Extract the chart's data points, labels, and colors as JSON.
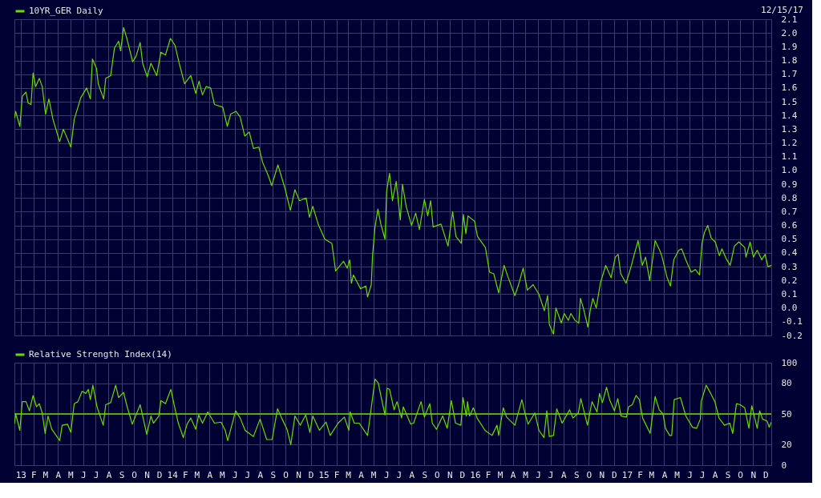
{
  "chart_data": [
    {
      "type": "line",
      "annotations": [
        "12/15/17"
      ],
      "xlim": [
        "2012-12-17",
        "2017-12-15"
      ],
      "ylim": [
        -0.2,
        2.1
      ],
      "yticks": [
        -0.2,
        -0.1,
        {
          "value": 0,
          "label": "0.0"
        },
        0.1,
        0.2,
        0.3,
        0.4,
        0.5,
        0.6,
        0.7,
        0.8,
        0.9,
        {
          "value": 1,
          "label": "1.0"
        },
        1.1,
        1.2,
        1.3,
        1.4,
        1.5,
        1.6,
        1.7,
        1.8,
        1.9,
        {
          "value": 2,
          "label": "2.0"
        },
        2.1
      ],
      "xticks": [
        {
          "value": "2013-01-01",
          "label": null
        },
        {
          "value": "2013-02-01",
          "label": null
        },
        {
          "value": "2013-03-01",
          "label": null
        },
        {
          "value": "2013-04-01",
          "label": null
        },
        {
          "value": "2013-05-01",
          "label": null
        },
        {
          "value": "2013-06-01",
          "label": null
        },
        {
          "value": "2013-07-01",
          "label": null
        },
        {
          "value": "2013-08-01",
          "label": null
        },
        {
          "value": "2013-09-01",
          "label": null
        },
        {
          "value": "2013-10-01",
          "label": null
        },
        {
          "value": "2013-11-01",
          "label": null
        },
        {
          "value": "2013-12-01",
          "label": null
        },
        {
          "value": "2014-01-01",
          "label": null
        },
        {
          "value": "2014-02-01",
          "label": null
        },
        {
          "value": "2014-03-01",
          "label": null
        },
        {
          "value": "2014-04-01",
          "label": null
        },
        {
          "value": "2014-05-01",
          "label": null
        },
        {
          "value": "2014-06-01",
          "label": null
        },
        {
          "value": "2014-07-01",
          "label": null
        },
        {
          "value": "2014-08-01",
          "label": null
        },
        {
          "value": "2014-09-01",
          "label": null
        },
        {
          "value": "2014-10-01",
          "label": null
        },
        {
          "value": "2014-11-01",
          "label": null
        },
        {
          "value": "2014-12-01",
          "label": null
        },
        {
          "value": "2015-01-01",
          "label": null
        },
        {
          "value": "2015-02-01",
          "label": null
        },
        {
          "value": "2015-03-01",
          "label": null
        },
        {
          "value": "2015-04-01",
          "label": null
        },
        {
          "value": "2015-05-01",
          "label": null
        },
        {
          "value": "2015-06-01",
          "label": null
        },
        {
          "value": "2015-07-01",
          "label": null
        },
        {
          "value": "2015-08-01",
          "label": null
        },
        {
          "value": "2015-09-01",
          "label": null
        },
        {
          "value": "2015-10-01",
          "label": null
        },
        {
          "value": "2015-11-01",
          "label": null
        },
        {
          "value": "2015-12-01",
          "label": null
        },
        {
          "value": "2016-01-01",
          "label": null
        },
        {
          "value": "2016-02-01",
          "label": null
        },
        {
          "value": "2016-03-01",
          "label": null
        },
        {
          "value": "2016-04-01",
          "label": null
        },
        {
          "value": "2016-05-01",
          "label": null
        },
        {
          "value": "2016-06-01",
          "label": null
        },
        {
          "value": "2016-07-01",
          "label": null
        },
        {
          "value": "2016-08-01",
          "label": null
        },
        {
          "value": "2016-09-01",
          "label": null
        },
        {
          "value": "2016-10-01",
          "label": null
        },
        {
          "value": "2016-11-01",
          "label": null
        },
        {
          "value": "2016-12-01",
          "label": null
        },
        {
          "value": "2017-01-01",
          "label": null
        },
        {
          "value": "2017-02-01",
          "label": null
        },
        {
          "value": "2017-03-01",
          "label": null
        },
        {
          "value": "2017-04-01",
          "label": null
        },
        {
          "value": "2017-05-01",
          "label": null
        },
        {
          "value": "2017-06-01",
          "label": null
        },
        {
          "value": "2017-07-01",
          "label": null
        },
        {
          "value": "2017-08-01",
          "label": null
        },
        {
          "value": "2017-09-01",
          "label": null
        },
        {
          "value": "2017-10-01",
          "label": null
        },
        {
          "value": "2017-11-01",
          "label": null
        },
        {
          "value": "2017-12-01",
          "label": null
        }
      ],
      "tick_labels": "y",
      "grid": true,
      "legend": "top left",
      "x": [
        "2012-12-17",
        "2012-12-20",
        "2012-12-30",
        "2013-01-05",
        "2013-01-14",
        "2013-01-19",
        "2013-01-26",
        "2013-01-31",
        "2013-02-06",
        "2013-02-15",
        "2013-02-22",
        "2013-03-02",
        "2013-03-10",
        "2013-03-20",
        "2013-04-05",
        "2013-04-14",
        "2013-05-02",
        "2013-05-10",
        "2013-05-26",
        "2013-06-09",
        "2013-06-18",
        "2013-06-23",
        "2013-07-03",
        "2013-07-07",
        "2013-07-20",
        "2013-07-25",
        "2013-08-06",
        "2013-08-15",
        "2013-08-25",
        "2013-08-30",
        "2013-09-06",
        "2013-09-14",
        "2013-09-28",
        "2013-10-06",
        "2013-10-16",
        "2013-10-22",
        "2013-11-02",
        "2013-11-11",
        "2013-11-25",
        "2013-12-05",
        "2013-12-16",
        "2013-12-28",
        "2014-01-08",
        "2014-01-18",
        "2014-01-31",
        "2014-02-15",
        "2014-02-27",
        "2014-03-07",
        "2014-03-15",
        "2014-03-24",
        "2014-04-04",
        "2014-04-13",
        "2014-05-03",
        "2014-05-14",
        "2014-05-22",
        "2014-06-04",
        "2014-06-14",
        "2014-06-25",
        "2014-07-06",
        "2014-07-16",
        "2014-07-29",
        "2014-08-07",
        "2014-08-21",
        "2014-08-29",
        "2014-09-13",
        "2014-09-30",
        "2014-10-13",
        "2014-10-24",
        "2014-11-04",
        "2014-11-20",
        "2014-11-28",
        "2014-12-06",
        "2014-12-19",
        "2015-01-04",
        "2015-01-21",
        "2015-01-30",
        "2015-02-18",
        "2015-02-27",
        "2015-03-05",
        "2015-03-09",
        "2015-03-14",
        "2015-03-31",
        "2015-04-13",
        "2015-04-17",
        "2015-04-26",
        "2015-04-29",
        "2015-05-05",
        "2015-05-12",
        "2015-05-19",
        "2015-05-29",
        "2015-06-02",
        "2015-06-09",
        "2015-06-16",
        "2015-06-25",
        "2015-07-05",
        "2015-07-10",
        "2015-07-19",
        "2015-08-01",
        "2015-08-11",
        "2015-08-20",
        "2015-09-01",
        "2015-09-09",
        "2015-09-16",
        "2015-09-22",
        "2015-10-11",
        "2015-10-28",
        "2015-11-08",
        "2015-11-16",
        "2015-11-29",
        "2015-12-04",
        "2015-12-10",
        "2015-12-15",
        "2015-12-31",
        "2016-01-07",
        "2016-01-26",
        "2016-02-05",
        "2016-02-15",
        "2016-02-27",
        "2016-03-11",
        "2016-03-20",
        "2016-04-06",
        "2016-04-15",
        "2016-04-26",
        "2016-05-06",
        "2016-05-20",
        "2016-06-03",
        "2016-06-16",
        "2016-06-24",
        "2016-06-28",
        "2016-07-08",
        "2016-07-14",
        "2016-07-27",
        "2016-08-03",
        "2016-08-13",
        "2016-08-19",
        "2016-08-29",
        "2016-09-07",
        "2016-09-11",
        "2016-09-18",
        "2016-09-29",
        "2016-10-05",
        "2016-10-11",
        "2016-10-19",
        "2016-10-29",
        "2016-11-11",
        "2016-11-24",
        "2016-12-04",
        "2016-12-11",
        "2016-12-17",
        "2016-12-30",
        "2017-01-12",
        "2017-01-18",
        "2017-01-28",
        "2017-02-07",
        "2017-02-15",
        "2017-02-25",
        "2017-03-10",
        "2017-03-21",
        "2017-03-26",
        "2017-04-08",
        "2017-04-16",
        "2017-04-24",
        "2017-05-06",
        "2017-05-13",
        "2017-05-23",
        "2017-06-05",
        "2017-06-15",
        "2017-06-25",
        "2017-07-01",
        "2017-07-07",
        "2017-07-15",
        "2017-07-23",
        "2017-08-02",
        "2017-08-12",
        "2017-08-18",
        "2017-08-28",
        "2017-09-07",
        "2017-09-17",
        "2017-09-28",
        "2017-10-12",
        "2017-10-15",
        "2017-10-25",
        "2017-11-02",
        "2017-11-11",
        "2017-11-22",
        "2017-11-30",
        "2017-12-07",
        "2017-12-15"
      ],
      "series": [
        {
          "name": "10YR_GER Daily",
          "color": "#66dd00",
          "values": [
            1.38,
            1.43,
            1.32,
            1.54,
            1.57,
            1.49,
            1.48,
            1.71,
            1.61,
            1.67,
            1.61,
            1.41,
            1.52,
            1.37,
            1.21,
            1.3,
            1.17,
            1.37,
            1.53,
            1.6,
            1.52,
            1.81,
            1.74,
            1.63,
            1.52,
            1.67,
            1.69,
            1.89,
            1.94,
            1.87,
            2.04,
            1.96,
            1.79,
            1.83,
            1.93,
            1.78,
            1.68,
            1.78,
            1.69,
            1.86,
            1.84,
            1.96,
            1.91,
            1.78,
            1.63,
            1.69,
            1.56,
            1.65,
            1.55,
            1.61,
            1.6,
            1.48,
            1.46,
            1.32,
            1.41,
            1.43,
            1.39,
            1.25,
            1.28,
            1.16,
            1.17,
            1.06,
            0.96,
            0.89,
            1.04,
            0.87,
            0.71,
            0.86,
            0.78,
            0.8,
            0.66,
            0.74,
            0.61,
            0.5,
            0.47,
            0.27,
            0.34,
            0.29,
            0.35,
            0.18,
            0.24,
            0.14,
            0.16,
            0.08,
            0.17,
            0.38,
            0.59,
            0.72,
            0.61,
            0.5,
            0.85,
            0.98,
            0.78,
            0.92,
            0.64,
            0.9,
            0.74,
            0.6,
            0.69,
            0.57,
            0.79,
            0.67,
            0.78,
            0.59,
            0.61,
            0.45,
            0.7,
            0.52,
            0.47,
            0.68,
            0.54,
            0.67,
            0.63,
            0.52,
            0.44,
            0.26,
            0.25,
            0.11,
            0.31,
            0.23,
            0.09,
            0.17,
            0.29,
            0.13,
            0.17,
            0.1,
            -0.02,
            0.09,
            -0.12,
            -0.19,
            0.0,
            -0.11,
            -0.04,
            -0.09,
            -0.04,
            -0.09,
            -0.11,
            0.07,
            0.0,
            -0.14,
            -0.01,
            0.07,
            0.0,
            0.18,
            0.31,
            0.22,
            0.37,
            0.39,
            0.25,
            0.18,
            0.31,
            0.38,
            0.49,
            0.31,
            0.37,
            0.2,
            0.49,
            0.42,
            0.38,
            0.22,
            0.16,
            0.35,
            0.42,
            0.43,
            0.35,
            0.26,
            0.28,
            0.24,
            0.47,
            0.55,
            0.6,
            0.51,
            0.48,
            0.38,
            0.43,
            0.36,
            0.31,
            0.45,
            0.48,
            0.44,
            0.37,
            0.48,
            0.37,
            0.42,
            0.35,
            0.39,
            0.3,
            0.31
          ]
        }
      ]
    },
    {
      "type": "line",
      "xlim": [
        "2012-12-17",
        "2017-12-15"
      ],
      "ylim": [
        0,
        100
      ],
      "yticks": [
        0,
        20,
        50,
        80,
        100
      ],
      "xticks": [
        {
          "value": "2013-01-01",
          "label": "13"
        },
        {
          "value": "2013-02-01",
          "label": "F"
        },
        {
          "value": "2013-03-01",
          "label": "M"
        },
        {
          "value": "2013-04-01",
          "label": "A"
        },
        {
          "value": "2013-05-01",
          "label": "M"
        },
        {
          "value": "2013-06-01",
          "label": "J"
        },
        {
          "value": "2013-07-01",
          "label": "J"
        },
        {
          "value": "2013-08-01",
          "label": "A"
        },
        {
          "value": "2013-09-01",
          "label": "S"
        },
        {
          "value": "2013-10-01",
          "label": "O"
        },
        {
          "value": "2013-11-01",
          "label": "N"
        },
        {
          "value": "2013-12-01",
          "label": "D"
        },
        {
          "value": "2014-01-01",
          "label": "14"
        },
        {
          "value": "2014-02-01",
          "label": "F"
        },
        {
          "value": "2014-03-01",
          "label": "M"
        },
        {
          "value": "2014-04-01",
          "label": "A"
        },
        {
          "value": "2014-05-01",
          "label": "M"
        },
        {
          "value": "2014-06-01",
          "label": "J"
        },
        {
          "value": "2014-07-01",
          "label": "J"
        },
        {
          "value": "2014-08-01",
          "label": "A"
        },
        {
          "value": "2014-09-01",
          "label": "S"
        },
        {
          "value": "2014-10-01",
          "label": "O"
        },
        {
          "value": "2014-11-01",
          "label": "N"
        },
        {
          "value": "2014-12-01",
          "label": "D"
        },
        {
          "value": "2015-01-01",
          "label": "15"
        },
        {
          "value": "2015-02-01",
          "label": "F"
        },
        {
          "value": "2015-03-01",
          "label": "M"
        },
        {
          "value": "2015-04-01",
          "label": "A"
        },
        {
          "value": "2015-05-01",
          "label": "M"
        },
        {
          "value": "2015-06-01",
          "label": "J"
        },
        {
          "value": "2015-07-01",
          "label": "J"
        },
        {
          "value": "2015-08-01",
          "label": "A"
        },
        {
          "value": "2015-09-01",
          "label": "S"
        },
        {
          "value": "2015-10-01",
          "label": "O"
        },
        {
          "value": "2015-11-01",
          "label": "N"
        },
        {
          "value": "2015-12-01",
          "label": "D"
        },
        {
          "value": "2016-01-01",
          "label": "16"
        },
        {
          "value": "2016-02-01",
          "label": "F"
        },
        {
          "value": "2016-03-01",
          "label": "M"
        },
        {
          "value": "2016-04-01",
          "label": "A"
        },
        {
          "value": "2016-05-01",
          "label": "M"
        },
        {
          "value": "2016-06-01",
          "label": "J"
        },
        {
          "value": "2016-07-01",
          "label": "J"
        },
        {
          "value": "2016-08-01",
          "label": "A"
        },
        {
          "value": "2016-09-01",
          "label": "S"
        },
        {
          "value": "2016-10-01",
          "label": "O"
        },
        {
          "value": "2016-11-01",
          "label": "N"
        },
        {
          "value": "2016-12-01",
          "label": "D"
        },
        {
          "value": "2017-01-01",
          "label": "17"
        },
        {
          "value": "2017-02-01",
          "label": "F"
        },
        {
          "value": "2017-03-01",
          "label": "M"
        },
        {
          "value": "2017-04-01",
          "label": "A"
        },
        {
          "value": "2017-05-01",
          "label": "M"
        },
        {
          "value": "2017-06-01",
          "label": "J"
        },
        {
          "value": "2017-07-01",
          "label": "J"
        },
        {
          "value": "2017-08-01",
          "label": "A"
        },
        {
          "value": "2017-09-01",
          "label": "S"
        },
        {
          "value": "2017-10-01",
          "label": "O"
        },
        {
          "value": "2017-11-01",
          "label": "N"
        },
        {
          "value": "2017-12-01",
          "label": "D"
        }
      ],
      "grid": true,
      "legend": "top left",
      "ref_lines": [
        {
          "axis": "y",
          "value": 50,
          "color": "#66dd00"
        }
      ],
      "x": [
        "2012-12-17",
        "2012-12-20",
        "2012-12-30",
        "2013-01-05",
        "2013-01-14",
        "2013-01-22",
        "2013-01-31",
        "2013-02-08",
        "2013-02-15",
        "2013-02-22",
        "2013-03-01",
        "2013-03-08",
        "2013-03-17",
        "2013-04-05",
        "2013-04-11",
        "2013-04-24",
        "2013-05-02",
        "2013-05-10",
        "2013-05-19",
        "2013-05-29",
        "2013-06-07",
        "2013-06-13",
        "2013-06-18",
        "2013-06-24",
        "2013-07-04",
        "2013-07-19",
        "2013-07-25",
        "2013-08-06",
        "2013-08-18",
        "2013-08-25",
        "2013-09-06",
        "2013-09-14",
        "2013-09-27",
        "2013-10-16",
        "2013-11-01",
        "2013-11-11",
        "2013-11-17",
        "2013-11-30",
        "2013-12-05",
        "2013-12-16",
        "2013-12-29",
        "2014-01-08",
        "2014-01-16",
        "2014-01-28",
        "2014-02-06",
        "2014-02-15",
        "2014-02-27",
        "2014-03-06",
        "2014-03-15",
        "2014-03-28",
        "2014-04-13",
        "2014-04-29",
        "2014-05-09",
        "2014-05-15",
        "2014-06-03",
        "2014-06-14",
        "2014-06-26",
        "2014-07-16",
        "2014-08-01",
        "2014-08-17",
        "2014-08-30",
        "2014-09-12",
        "2014-09-22",
        "2014-10-05",
        "2014-10-14",
        "2014-10-24",
        "2014-11-06",
        "2014-11-19",
        "2014-11-29",
        "2014-12-06",
        "2014-12-22",
        "2015-01-07",
        "2015-01-17",
        "2015-02-05",
        "2015-02-20",
        "2015-03-03",
        "2015-03-06",
        "2015-03-16",
        "2015-03-28",
        "2015-04-17",
        "2015-04-24",
        "2015-05-05",
        "2015-05-13",
        "2015-05-19",
        "2015-05-29",
        "2015-06-03",
        "2015-06-09",
        "2015-06-20",
        "2015-06-27",
        "2015-07-08",
        "2015-07-12",
        "2015-07-30",
        "2015-08-06",
        "2015-08-24",
        "2015-09-01",
        "2015-09-14",
        "2015-09-20",
        "2015-09-30",
        "2015-10-15",
        "2015-10-26",
        "2015-11-05",
        "2015-11-15",
        "2015-11-28",
        "2015-12-03",
        "2015-12-11",
        "2015-12-14",
        "2015-12-19",
        "2015-12-28",
        "2016-01-06",
        "2016-01-25",
        "2016-02-11",
        "2016-02-23",
        "2016-02-27",
        "2016-03-09",
        "2016-03-17",
        "2016-04-06",
        "2016-04-12",
        "2016-04-23",
        "2016-04-30",
        "2016-05-08",
        "2016-05-24",
        "2016-06-03",
        "2016-06-15",
        "2016-06-22",
        "2016-06-28",
        "2016-07-08",
        "2016-07-16",
        "2016-07-29",
        "2016-08-16",
        "2016-08-24",
        "2016-09-06",
        "2016-09-12",
        "2016-09-28",
        "2016-10-09",
        "2016-10-21",
        "2016-10-27",
        "2016-11-03",
        "2016-11-13",
        "2016-11-21",
        "2016-12-02",
        "2016-12-10",
        "2016-12-18",
        "2016-12-31",
        "2017-01-05",
        "2017-01-14",
        "2017-01-23",
        "2017-01-31",
        "2017-02-08",
        "2017-02-26",
        "2017-03-10",
        "2017-03-20",
        "2017-03-29",
        "2017-04-04",
        "2017-04-14",
        "2017-04-19",
        "2017-04-25",
        "2017-05-10",
        "2017-05-23",
        "2017-06-08",
        "2017-06-18",
        "2017-06-27",
        "2017-06-29",
        "2017-07-11",
        "2017-07-22",
        "2017-08-01",
        "2017-08-11",
        "2017-08-24",
        "2017-09-06",
        "2017-09-13",
        "2017-09-22",
        "2017-10-01",
        "2017-10-12",
        "2017-10-22",
        "2017-10-29",
        "2017-11-11",
        "2017-11-17",
        "2017-11-24",
        "2017-12-05",
        "2017-12-10",
        "2017-12-15"
      ],
      "series": [
        {
          "name": "Relative Strength Index(14)",
          "color": "#66dd00",
          "values": [
            40,
            50,
            34,
            62,
            62,
            53,
            68,
            57,
            60,
            51,
            31,
            48,
            35,
            24,
            39,
            40,
            32,
            60,
            62,
            72,
            70,
            74,
            64,
            78,
            57,
            39,
            59,
            61,
            78,
            66,
            71,
            58,
            40,
            59,
            30,
            48,
            41,
            48,
            63,
            60,
            74,
            55,
            41,
            27,
            40,
            46,
            35,
            49,
            41,
            52,
            41,
            42,
            34,
            24,
            53,
            46,
            34,
            28,
            45,
            25,
            25,
            55,
            46,
            35,
            20,
            48,
            39,
            49,
            32,
            48,
            34,
            42,
            29,
            41,
            47,
            34,
            52,
            41,
            41,
            29,
            50,
            84,
            80,
            68,
            49,
            75,
            74,
            54,
            62,
            46,
            57,
            40,
            41,
            62,
            47,
            60,
            41,
            35,
            48,
            36,
            63,
            41,
            39,
            66,
            48,
            62,
            48,
            56,
            46,
            34,
            29,
            39,
            29,
            56,
            47,
            39,
            48,
            64,
            51,
            40,
            51,
            34,
            27,
            53,
            28,
            29,
            55,
            41,
            54,
            46,
            51,
            65,
            39,
            62,
            52,
            70,
            61,
            76,
            63,
            53,
            65,
            48,
            47,
            57,
            59,
            68,
            64,
            46,
            31,
            67,
            54,
            50,
            36,
            29,
            29,
            64,
            66,
            48,
            37,
            36,
            45,
            62,
            78,
            70,
            62,
            46,
            39,
            41,
            31,
            60,
            59,
            56,
            36,
            58,
            36,
            53,
            45,
            43,
            37,
            42
          ]
        }
      ]
    }
  ]
}
